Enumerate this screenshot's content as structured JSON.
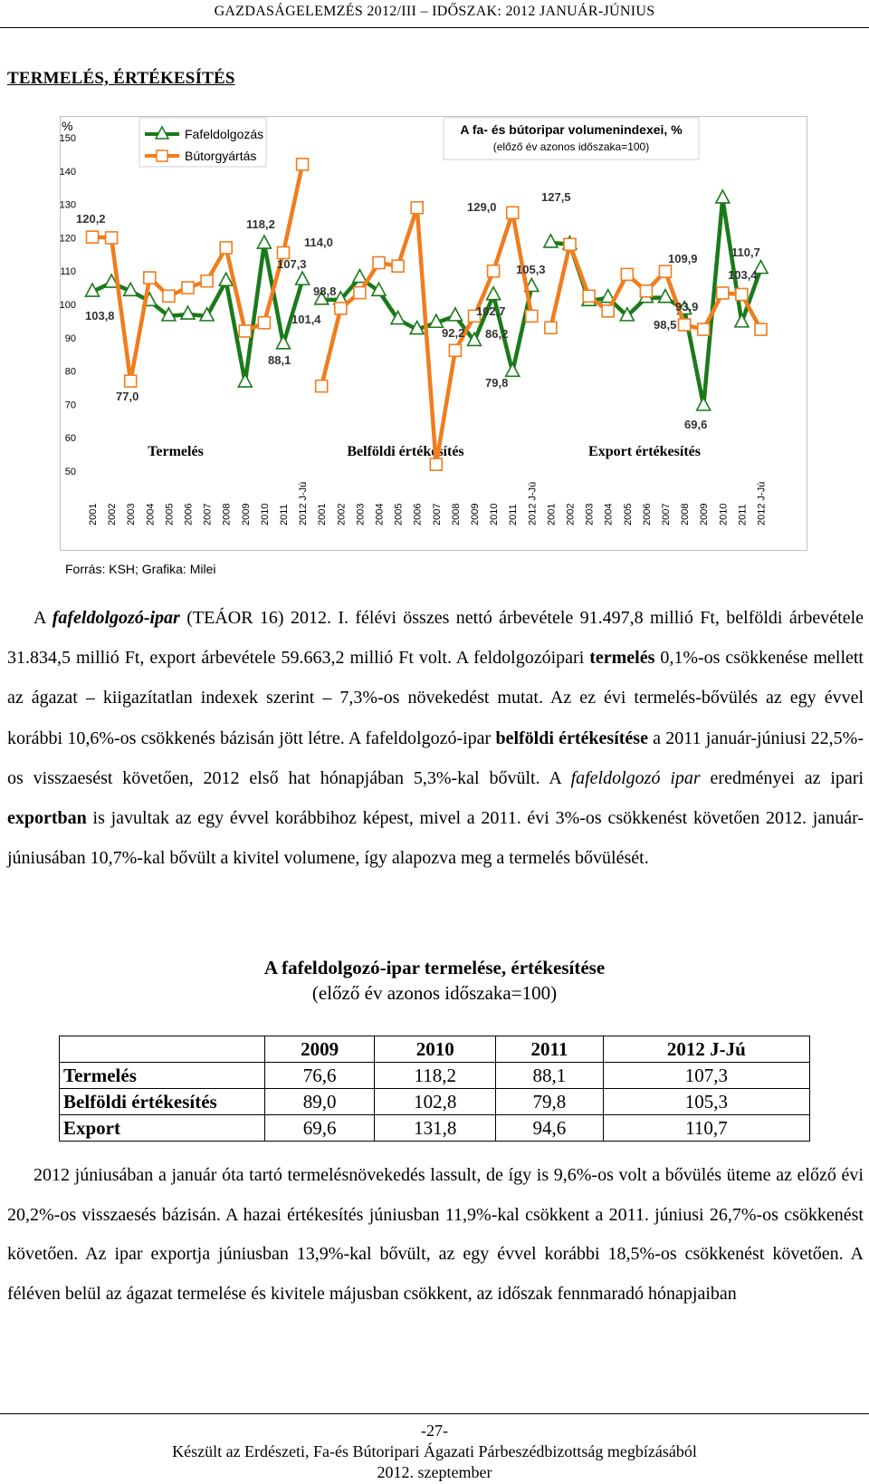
{
  "header": {
    "running_head": "GAZDASÁGELEMZÉS 2012/III – IDŐSZAK: 2012 JANUÁR-JÚNIUS"
  },
  "section": {
    "title": "TERMELÉS, ÉRTÉKESÍTÉS"
  },
  "chart_data": {
    "type": "line",
    "title": "A fa- és bútoripar volumenindexei, %",
    "subtitle": "(előző év azonos időszaka=100)",
    "ylabel": "%",
    "ylim": [
      50,
      150
    ],
    "yticks": [
      50,
      60,
      70,
      80,
      90,
      100,
      110,
      120,
      130,
      140,
      150
    ],
    "grid": false,
    "legend_position": "top-left",
    "groups": [
      "Termelés",
      "Belföldi értékesítés",
      "Export értékesítés"
    ],
    "categories": [
      "2001",
      "2002",
      "2003",
      "2004",
      "2005",
      "2006",
      "2007",
      "2008",
      "2009",
      "2010",
      "2011",
      "2012 J-Jú"
    ],
    "series": [
      {
        "name": "Fafeldolgozás",
        "color": "#1a7a1a",
        "marker": "triangle",
        "values": [
          [
            103.8,
            106.5,
            104.0,
            101.0,
            96.5,
            97.0,
            96.5,
            107.0,
            76.6,
            118.2,
            88.1,
            107.3
          ],
          [
            101.4,
            101.4,
            108.0,
            104.0,
            95.5,
            92.5,
            94.5,
            96.5,
            89.0,
            102.8,
            79.8,
            105.3
          ],
          [
            118.5,
            118.0,
            101.0,
            102.0,
            96.5,
            102.0,
            102.0,
            98.5,
            69.6,
            131.8,
            94.6,
            110.7
          ]
        ]
      },
      {
        "name": "Bútorgyártás",
        "color": "#f07d1e",
        "marker": "square",
        "values": [
          [
            120.2,
            120.0,
            77.0,
            108.0,
            102.5,
            105.0,
            107.0,
            117.0,
            92.0,
            94.5,
            115.5,
            142.0
          ],
          [
            75.5,
            98.8,
            103.5,
            112.5,
            111.5,
            129.0,
            52.0,
            86.2,
            96.5,
            110.0,
            127.5,
            96.5
          ],
          [
            93.0,
            118.0,
            102.5,
            98.0,
            109.0,
            104.0,
            109.9,
            93.9,
            92.5,
            103.4,
            103.0,
            92.5
          ]
        ]
      }
    ],
    "data_labels": [
      "120,2",
      "103,8",
      "77,0",
      "118,2",
      "107,3",
      "88,1",
      "114,0",
      "98,8",
      "101,4",
      "129,0",
      "92,2",
      "102,7",
      "86,2",
      "79,8",
      "105,3",
      "127,5",
      "109,9",
      "93,9",
      "98,5",
      "69,6",
      "110,7",
      "103,4"
    ]
  },
  "chart_text": {
    "ylabel": "%",
    "title": "A fa- és bútoripar volumenindexei, %",
    "subtitle": "(előző év azonos időszaka=100)",
    "legend_fa": "Fafeldolgozás",
    "legend_butor": "Bútorgyártás",
    "group_termeles": "Termelés",
    "group_belfoldi": "Belföldi értékesítés",
    "group_export": "Export értékesítés"
  },
  "source_note": "Forrás: KSH; Grafika: Milei",
  "paragraph1": [
    "A fafeldolgozó-ipar (TEÁOR 16) 2012. I. félévi összes nettó árbevétele 91.497,8 millió Ft, belföldi árbevétele 31.834,5 millió Ft, export árbevétele 59.663,2 millió Ft volt. A feldolgozóipari termelés 0,1%-os csökkenése mellett az ágazat – kiigazítatlan indexek szerint – 7,3%-os növekedést mutat. Az ez évi termelés-bővülés az egy évvel korábbi 10,6%-os csökkenés bázisán jött létre. A fafeldolgozó-ipar belföldi értékesítése a 2011 január-júniusi 22,5%-os visszaesést követően, 2012 első hat hónapjában 5,3%-kal bővült. A fafeldolgozó ipar eredményei az ipari exportban is javultak az egy évvel korábbihoz képest, mivel a 2011. évi 3%-os csökkenést követően 2012. január-júniusában 10,7%-kal bővült a kivitel volumene, így alapozva meg a termelés bővülését."
  ],
  "table": {
    "title": "A fafeldolgozó-ipar termelése, értékesítése",
    "subtitle": "(előző év azonos időszaka=100)",
    "columns": [
      "",
      "2009",
      "2010",
      "2011",
      "2012 J-Jú"
    ],
    "rows": [
      {
        "label": "Termelés",
        "values": [
          "76,6",
          "118,2",
          "88,1",
          "107,3"
        ]
      },
      {
        "label": "Belföldi értékesítés",
        "values": [
          "89,0",
          "102,8",
          "79,8",
          "105,3"
        ]
      },
      {
        "label": "Export",
        "values": [
          "69,6",
          "131,8",
          "94,6",
          "110,7"
        ]
      }
    ]
  },
  "paragraph2": "2012 júniusában a január óta tartó termelésnövekedés lassult, de így is 9,6%-os volt a bővülés üteme az előző évi 20,2%-os visszaesés bázisán. A hazai értékesítés júniusban 11,9%-kal csökkent a 2011. júniusi 26,7%-os csökkenést követően. Az ipar exportja júniusban 13,9%-kal bővült, az egy évvel korábbi 18,5%-os csökkenést követően. A féléven belül az ágazat termelése és kivitele májusban csökkent, az időszak fennmaradó hónapjaiban",
  "footer": {
    "page_number": "-27-",
    "line1": "Készült az Erdészeti, Fa-és Bútoripari Ágazati Párbeszédbizottság megbízásából",
    "line2": "2012. szeptember"
  }
}
